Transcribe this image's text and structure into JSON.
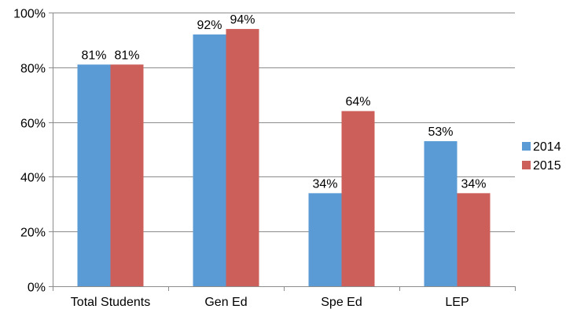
{
  "chart_data": {
    "type": "bar",
    "categories": [
      "Total Students",
      "Gen Ed",
      "Spe Ed",
      "LEP"
    ],
    "series": [
      {
        "name": "2014",
        "color": "#5B9BD5",
        "values": [
          81,
          92,
          34,
          53
        ],
        "labels": [
          "81%",
          "92%",
          "34%",
          "53%"
        ]
      },
      {
        "name": "2015",
        "color": "#CD5F5A",
        "values": [
          81,
          94,
          64,
          34
        ],
        "labels": [
          "81%",
          "94%",
          "64%",
          "34%"
        ]
      }
    ],
    "ylim": [
      0,
      100
    ],
    "yticks": [
      0,
      20,
      40,
      60,
      80,
      100
    ],
    "ytick_labels": [
      "0%",
      "20%",
      "40%",
      "60%",
      "80%",
      "100%"
    ],
    "grid": true,
    "legend_position": "right"
  }
}
